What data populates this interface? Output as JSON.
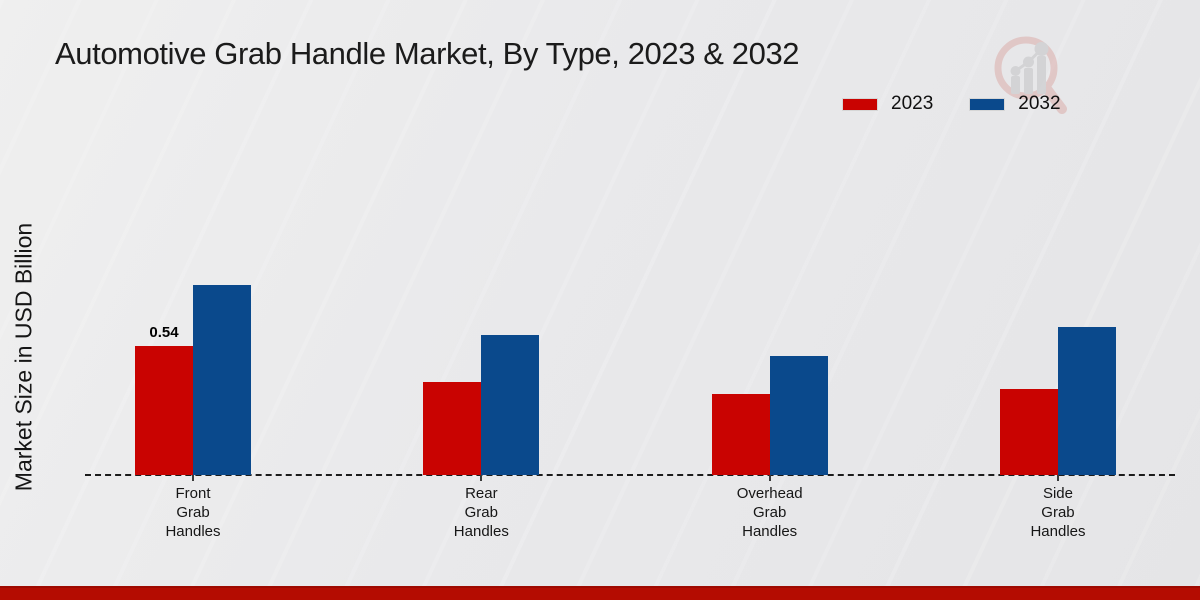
{
  "chart_data": {
    "type": "bar",
    "title": "Automotive Grab Handle Market, By Type, 2023 & 2032",
    "ylabel": "Market Size in USD Billion",
    "xlabel": "",
    "categories": [
      "Front Grab Handles",
      "Rear Grab Handles",
      "Overhead Grab Handles",
      "Side Grab Handles"
    ],
    "series": [
      {
        "name": "2023",
        "color": "#c90301",
        "values": [
          0.54,
          0.39,
          0.34,
          0.36
        ]
      },
      {
        "name": "2032",
        "color": "#0a498c",
        "values": [
          0.8,
          0.59,
          0.5,
          0.62
        ]
      }
    ],
    "bar_value_labels": [
      {
        "series_index": 0,
        "category_index": 0,
        "text": "0.54"
      }
    ],
    "ylim": [
      0,
      1.35
    ],
    "grid": false,
    "baseline_style": "dashed",
    "legend_position": "top-right"
  },
  "legend": {
    "items": [
      {
        "label": "2023",
        "color": "#c90301"
      },
      {
        "label": "2032",
        "color": "#0a498c"
      }
    ]
  },
  "watermark": {
    "icon": "magnifier-bar-chart-logo"
  },
  "footer": {
    "accent_color": "#b40c01"
  },
  "background": {
    "color": "#e9e9ea"
  }
}
